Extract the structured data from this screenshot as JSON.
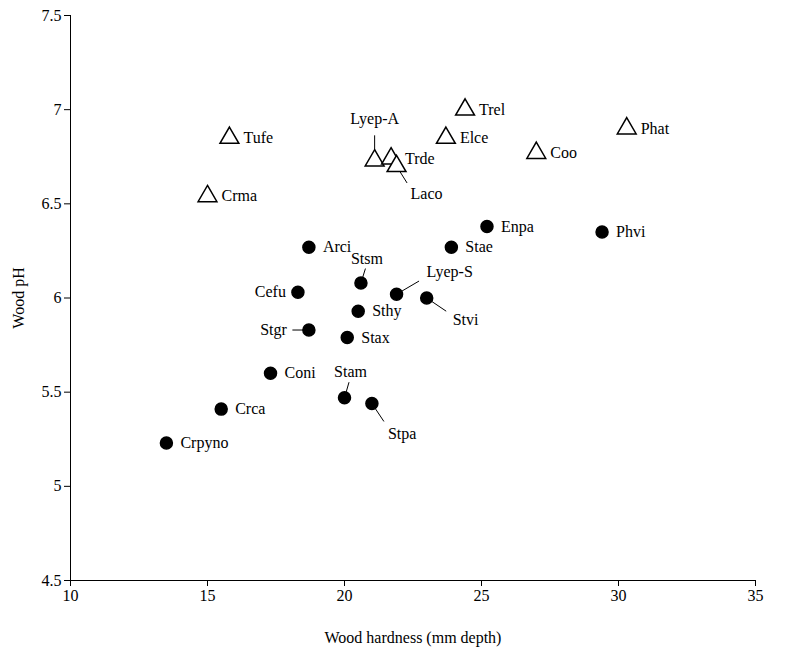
{
  "chart_data": {
    "type": "scatter",
    "x_label": "Wood hardness (mm depth)",
    "y_label": "Wood pH",
    "xlim": [
      10,
      35
    ],
    "xticks": [
      10,
      15,
      20,
      25,
      30,
      35
    ],
    "ylim": [
      4.5,
      7.5
    ],
    "yticks": [
      4.5,
      5,
      5.5,
      6,
      6.5,
      7,
      7.5
    ],
    "grid": false,
    "series": [
      {
        "marker": "triangle-open",
        "color": "#000000",
        "labels": [
          "Tufe",
          "Crma",
          "Lyep-A",
          "Trde",
          "Laco",
          "Trel",
          "Elce",
          "Coo",
          "Phat"
        ],
        "x": [
          15.8,
          15.0,
          21.1,
          21.7,
          21.9,
          24.4,
          23.7,
          27.0,
          30.3
        ],
        "values": [
          6.85,
          6.54,
          6.73,
          6.74,
          6.7,
          7.0,
          6.85,
          6.77,
          6.9
        ]
      },
      {
        "marker": "circle",
        "color": "#000000",
        "labels": [
          "Arci",
          "Cefu",
          "Stsm",
          "Sthy",
          "Stgr",
          "Stax",
          "Lyep-S",
          "Stvi",
          "Enpa",
          "Stae",
          "Phvi",
          "Coni",
          "Crca",
          "Crpyno",
          "Stam",
          "Stpa"
        ],
        "x": [
          18.7,
          18.3,
          20.6,
          20.5,
          18.7,
          20.1,
          21.9,
          23.0,
          25.2,
          23.9,
          29.4,
          17.3,
          15.5,
          13.5,
          20.0,
          21.0
        ],
        "values": [
          6.27,
          6.03,
          6.08,
          5.93,
          5.83,
          5.79,
          6.02,
          6.0,
          6.38,
          6.27,
          6.35,
          5.6,
          5.41,
          5.23,
          5.47,
          5.44
        ]
      }
    ]
  }
}
